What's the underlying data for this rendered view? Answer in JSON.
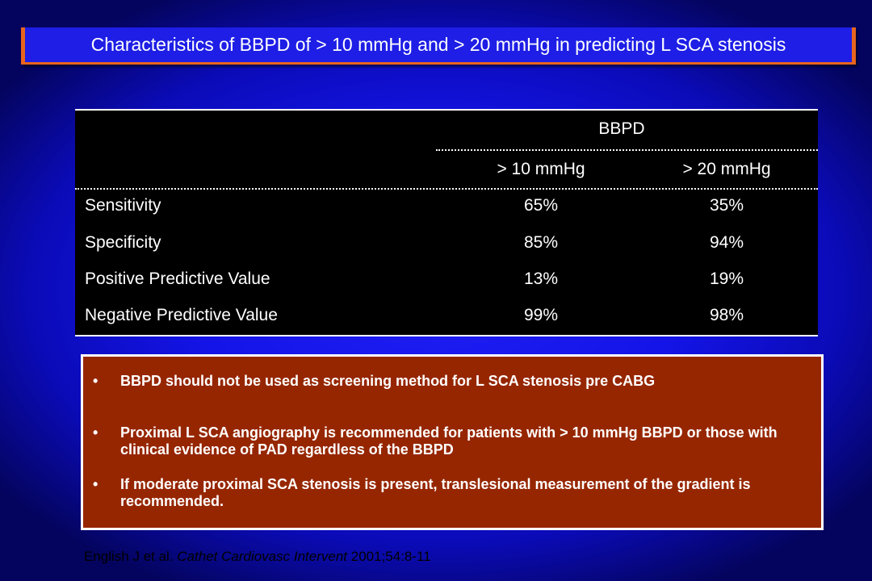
{
  "title": "Characteristics of BBPD of > 10 mmHg and > 20 mmHg in predicting L SCA stenosis",
  "table": {
    "group_header": "BBPD",
    "columns": [
      "> 10 mmHg",
      "> 20 mmHg"
    ],
    "rows": [
      {
        "label": "Sensitivity",
        "values": [
          "65%",
          "35%"
        ]
      },
      {
        "label": "Specificity",
        "values": [
          "85%",
          "94%"
        ]
      },
      {
        "label": "Positive Predictive Value",
        "values": [
          "13%",
          "19%"
        ]
      },
      {
        "label": "Negative Predictive Value",
        "values": [
          "99%",
          "98%"
        ]
      }
    ]
  },
  "notes": {
    "bullet_char": "•",
    "items": [
      "BBPD should not be used as screening method for L SCA stenosis pre CABG",
      "Proximal L SCA angiography is recommended for patients with > 10 mmHg BBPD or those with clinical evidence of  PAD regardless of the BBPD",
      "If moderate proximal SCA stenosis is present, translesional measurement of the gradient is recommended."
    ]
  },
  "citation": {
    "authors": "English J et al.",
    "journal": "Cathet Cardiovasc Intervent",
    "details": "2001;54:8-11"
  },
  "colors": {
    "background": "#1414e8",
    "title_bar": "#1e1ee6",
    "title_accent": "#e8651e",
    "table_background": "#000000",
    "notes_background": "#962600",
    "text": "#ffffff",
    "citation_text": "#000000"
  }
}
